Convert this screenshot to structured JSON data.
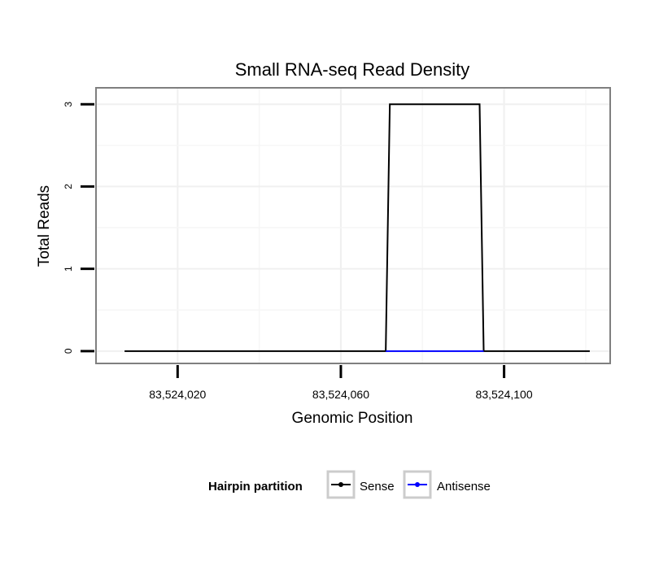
{
  "chart_data": {
    "type": "line",
    "title": "Small RNA-seq Read Density",
    "xlabel": "Genomic Position",
    "ylabel": "Total Reads",
    "xlim": [
      83524000,
      83524126
    ],
    "ylim": [
      -0.15,
      3.2
    ],
    "x_ticks": [
      83524020,
      83524060,
      83524100
    ],
    "x_tick_labels": [
      "83,524,020",
      "83,524,060",
      "83,524,100"
    ],
    "y_ticks": [
      0,
      1,
      2,
      3
    ],
    "y_tick_labels": [
      "0",
      "1",
      "2",
      "3"
    ],
    "grid": true,
    "legend_position": "bottom",
    "legend_title": "Hairpin partition",
    "series": [
      {
        "name": "Sense",
        "color": "#000000",
        "points": [
          [
            83524007,
            0
          ],
          [
            83524071,
            0
          ],
          [
            83524072,
            3
          ],
          [
            83524094,
            3
          ],
          [
            83524095,
            0
          ],
          [
            83524121,
            0
          ]
        ]
      },
      {
        "name": "Antisense",
        "color": "#0000ff",
        "points": [
          [
            83524071,
            0
          ],
          [
            83524095,
            0
          ]
        ]
      }
    ]
  }
}
